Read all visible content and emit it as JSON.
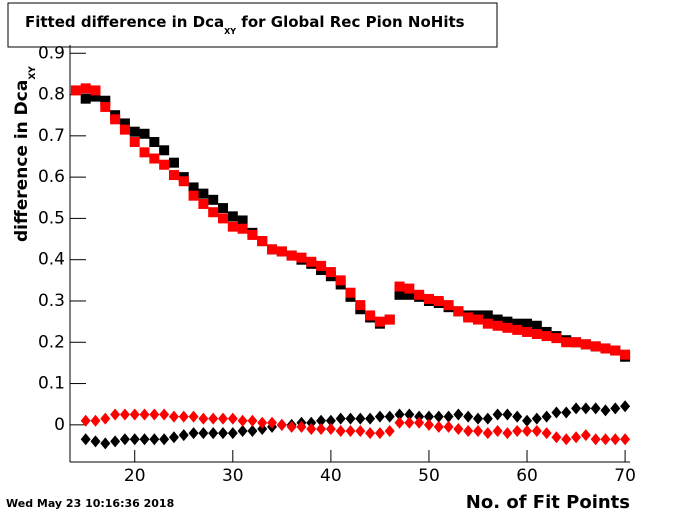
{
  "chart_data": {
    "type": "scatter",
    "title": {
      "main": "Fitted difference in Dca",
      "sub": "XY",
      "rest": " for Global Rec Pion NoHits"
    },
    "y_label": {
      "main": "difference in Dca",
      "sub": "XY"
    },
    "x_label": "No. of Fit Points",
    "timestamp": "Wed May 23 10:16:36 2018",
    "xlim": [
      13.4,
      70.5
    ],
    "ylim": [
      -0.09,
      0.92
    ],
    "xticks": [
      20,
      30,
      40,
      50,
      60,
      70
    ],
    "yticks": [
      0,
      0.1,
      0.2,
      0.3,
      0.4,
      0.5,
      0.6,
      0.7,
      0.8,
      0.9
    ],
    "x": [
      14,
      15,
      16,
      17,
      18,
      19,
      20,
      21,
      22,
      23,
      24,
      25,
      26,
      27,
      28,
      29,
      30,
      31,
      32,
      33,
      34,
      35,
      36,
      37,
      38,
      39,
      40,
      41,
      42,
      43,
      44,
      45,
      46,
      47,
      48,
      49,
      50,
      51,
      52,
      53,
      54,
      55,
      56,
      57,
      58,
      59,
      60,
      61,
      62,
      63,
      64,
      65,
      66,
      67,
      68,
      69,
      70
    ],
    "series": [
      {
        "color": "#000000",
        "marker": "square",
        "values": [
          null,
          0.79,
          0.795,
          0.785,
          0.75,
          0.73,
          0.71,
          0.705,
          0.685,
          0.665,
          0.635,
          0.6,
          0.575,
          0.56,
          0.545,
          0.525,
          0.505,
          0.495,
          0.465,
          0.445,
          0.425,
          0.42,
          0.41,
          0.4,
          0.39,
          0.375,
          0.36,
          0.34,
          0.31,
          0.28,
          0.26,
          0.245,
          0.255,
          0.315,
          0.315,
          0.31,
          0.3,
          0.295,
          0.285,
          0.275,
          0.265,
          0.265,
          0.265,
          0.255,
          0.25,
          0.245,
          0.245,
          0.24,
          0.225,
          0.215,
          0.205,
          0.2,
          0.195,
          0.19,
          0.185,
          0.18,
          0.165
        ]
      },
      {
        "color": "#ff0000",
        "marker": "square",
        "values": [
          0.81,
          0.815,
          0.81,
          0.77,
          0.74,
          0.715,
          0.685,
          0.66,
          0.645,
          0.63,
          0.605,
          0.59,
          0.555,
          0.535,
          0.515,
          0.5,
          0.48,
          0.475,
          0.46,
          0.445,
          0.425,
          0.42,
          0.41,
          0.405,
          0.395,
          0.385,
          0.37,
          0.35,
          0.32,
          0.29,
          0.265,
          0.25,
          0.255,
          0.335,
          0.33,
          0.315,
          0.305,
          0.3,
          0.29,
          0.275,
          0.26,
          0.255,
          0.245,
          0.24,
          0.235,
          0.23,
          0.225,
          0.22,
          0.215,
          0.21,
          0.2,
          0.2,
          0.195,
          0.19,
          0.185,
          0.18,
          0.17
        ]
      },
      {
        "color": "#000000",
        "marker": "diamond",
        "values": [
          null,
          -0.035,
          -0.04,
          -0.045,
          -0.04,
          -0.035,
          -0.035,
          -0.035,
          -0.035,
          -0.035,
          -0.03,
          -0.025,
          -0.02,
          -0.02,
          -0.02,
          -0.02,
          -0.02,
          -0.015,
          -0.015,
          -0.01,
          -0.005,
          0,
          0,
          0.005,
          0.005,
          0.01,
          0.01,
          0.015,
          0.015,
          0.015,
          0.015,
          0.02,
          0.02,
          0.025,
          0.025,
          0.02,
          0.02,
          0.02,
          0.02,
          0.025,
          0.02,
          0.015,
          0.015,
          0.025,
          0.025,
          0.02,
          0.01,
          0.015,
          0.02,
          0.03,
          0.03,
          0.04,
          0.04,
          0.04,
          0.035,
          0.04,
          0.045
        ]
      },
      {
        "color": "#ff0000",
        "marker": "diamond",
        "values": [
          null,
          0.01,
          0.01,
          0.015,
          0.025,
          0.025,
          0.025,
          0.025,
          0.025,
          0.025,
          0.02,
          0.02,
          0.02,
          0.015,
          0.015,
          0.015,
          0.015,
          0.01,
          0.01,
          0.005,
          0.005,
          0,
          -0.005,
          -0.005,
          -0.01,
          -0.01,
          -0.01,
          -0.015,
          -0.015,
          -0.015,
          -0.02,
          -0.02,
          -0.015,
          0.005,
          0.005,
          0.005,
          0,
          -0.005,
          -0.005,
          -0.01,
          -0.015,
          -0.015,
          -0.02,
          -0.015,
          -0.02,
          -0.015,
          -0.015,
          -0.015,
          -0.02,
          -0.03,
          -0.035,
          -0.03,
          -0.025,
          -0.035,
          -0.035,
          -0.035,
          -0.035
        ]
      }
    ]
  }
}
